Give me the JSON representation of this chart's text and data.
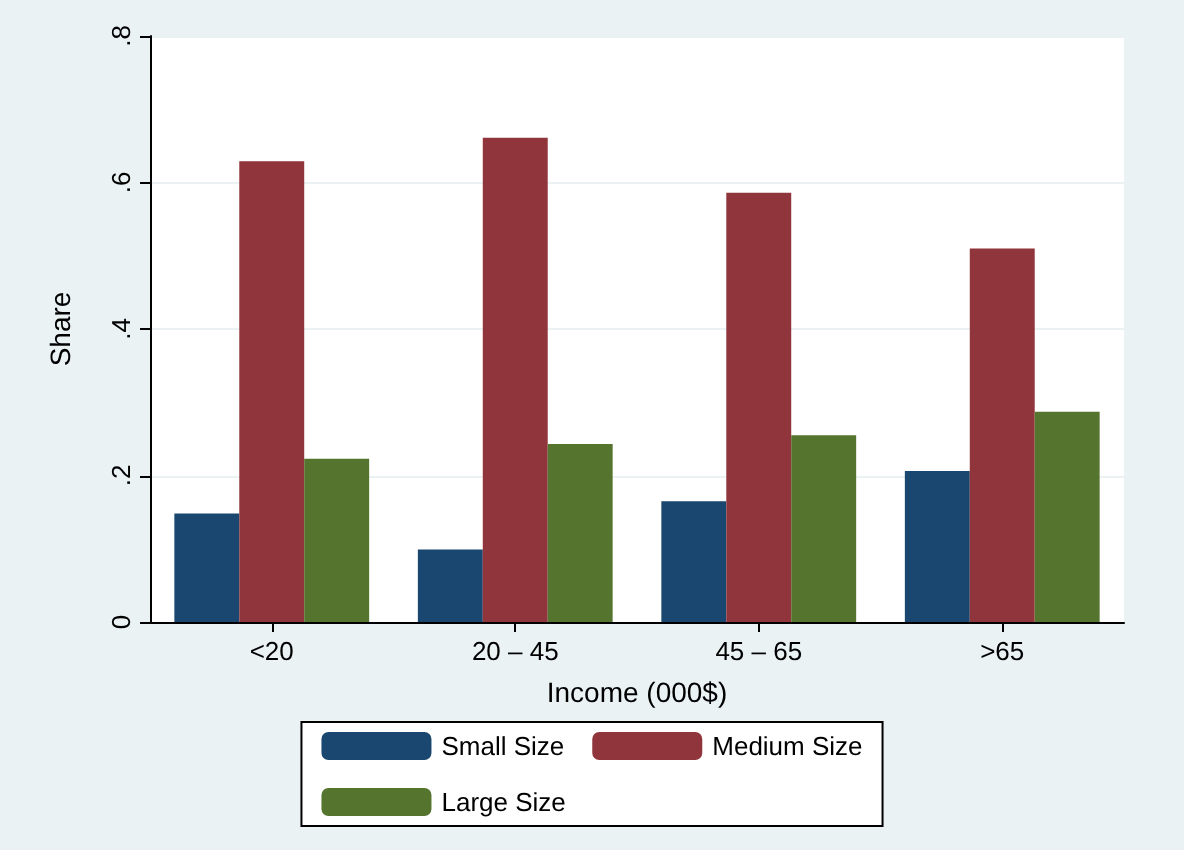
{
  "chart_data": {
    "type": "bar",
    "xlabel": "Income (000$)",
    "ylabel": "Share",
    "categories": [
      "<20",
      "20 – 45",
      "45 – 65",
      ">65"
    ],
    "series": [
      {
        "name": "Small Size",
        "color": "#1a476f",
        "values": [
          0.148,
          0.099,
          0.165,
          0.206
        ]
      },
      {
        "name": "Medium Size",
        "color": "#90353b",
        "values": [
          0.629,
          0.661,
          0.586,
          0.51
        ]
      },
      {
        "name": "Large Size",
        "color": "#55752f",
        "values": [
          0.223,
          0.243,
          0.255,
          0.287
        ]
      }
    ],
    "ylim": [
      0,
      0.8
    ],
    "yticks": [
      0,
      {
        "value": 0.2,
        "label": ".2"
      },
      {
        "value": 0.4,
        "label": ".4"
      },
      {
        "value": 0.6,
        "label": ".6"
      },
      {
        "value": 0.8,
        "label": ".8"
      }
    ],
    "grid": "y",
    "legend": "bottom"
  }
}
